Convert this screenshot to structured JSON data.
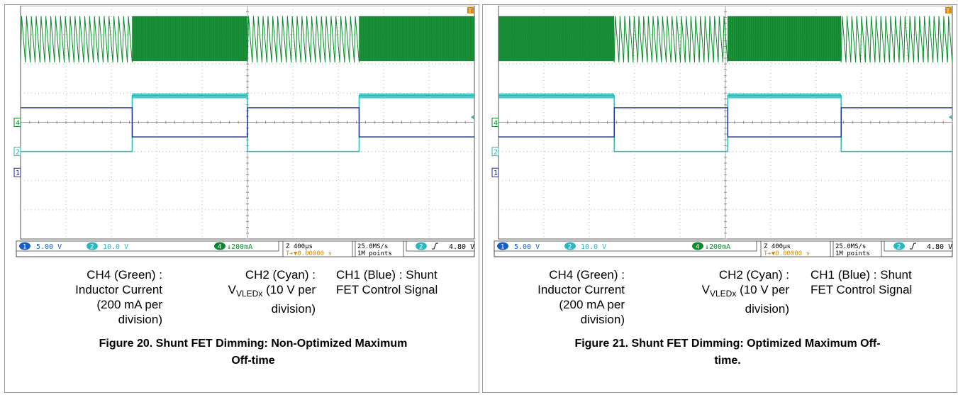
{
  "colors": {
    "ch4_green": "#0a8a2a",
    "ch2_cyan": "#21b8b8",
    "ch1_blue": "#1d2aa0",
    "readout_blue": "#1560c8",
    "readout_cyan": "#2ab6c4",
    "readout_orange": "#e08a00",
    "grid": "#b0b0b0"
  },
  "labels": {
    "ch4": [
      "CH4 (Green) :",
      "Inductor Current",
      "(200 mA per",
      "division)"
    ],
    "ch2_line1": "CH2 (Cyan) :",
    "ch2_v": "V",
    "ch2_sub": "VLEDx",
    "ch2_rest": " (10 V per",
    "ch2_line3": "division)",
    "ch1": [
      "CH1 (Blue) : Shunt",
      "FET Control Signal"
    ]
  },
  "chart_data": [
    {
      "type": "line",
      "title": "Figure 20. Shunt FET Dimming: Non-Optimized Maximum Off-time",
      "caption_lines": [
        "Figure 20. Shunt FET Dimming: Non-Optimized Maximum",
        "Off-time"
      ],
      "grid": true,
      "divisions": {
        "x": 10,
        "y": 8
      },
      "channel_markers": [
        "4",
        "2",
        "1"
      ],
      "trigger_marker": "T",
      "readout": {
        "ch1_scale": "5.00 V",
        "ch2_scale": "10.0 V",
        "ch4_scale": "↓200mA",
        "timebase": "Z 400µs",
        "trigger_offset": "T+▼0.00000 s",
        "sample_rate": "25.0MS/s",
        "record_length": "1M points",
        "trigger_channel": "2",
        "trigger_level": "4.80 V"
      },
      "series": [
        {
          "name": "CH4 (Green) : Inductor Current",
          "unit": "mA/div",
          "scale": 200,
          "segments": [
            {
              "from_div": 0.0,
              "to_div": 2.46,
              "mode": "sawtooth"
            },
            {
              "from_div": 2.46,
              "to_div": 5.0,
              "mode": "high-freq"
            },
            {
              "from_div": 5.0,
              "to_div": 7.46,
              "mode": "sawtooth"
            },
            {
              "from_div": 7.46,
              "to_div": 10.0,
              "mode": "high-freq"
            }
          ]
        },
        {
          "name": "CH2 (Cyan) : VVLEDx",
          "unit": "V/div",
          "scale": 10,
          "low_div": 5.0,
          "high_div": 3.08,
          "high_intervals": [
            [
              2.46,
              5.0
            ],
            [
              7.46,
              10.0
            ]
          ]
        },
        {
          "name": "CH1 (Blue) : Shunt FET Control Signal",
          "unit": "V/div",
          "scale": 5,
          "high_div": 3.5,
          "low_div": 4.5,
          "high_intervals": [
            [
              0.0,
              2.46
            ],
            [
              5.0,
              7.46
            ]
          ]
        }
      ]
    },
    {
      "type": "line",
      "title": "Figure 21. Shunt FET Dimming: Optimized Maximum Off-time.",
      "caption_lines": [
        "Figure 21. Shunt FET Dimming: Optimized Maximum Off-",
        "time."
      ],
      "grid": true,
      "divisions": {
        "x": 10,
        "y": 8
      },
      "channel_markers": [
        "4",
        "2",
        "1"
      ],
      "trigger_marker": "T",
      "readout": {
        "ch1_scale": "5.00 V",
        "ch2_scale": "10.0 V",
        "ch4_scale": "↓200mA",
        "timebase": "Z 400µs",
        "trigger_offset": "T+▼0.00000 s",
        "sample_rate": "25.0MS/s",
        "record_length": "1M points",
        "trigger_channel": "2",
        "trigger_level": "4.80 V"
      },
      "series": [
        {
          "name": "CH4 (Green) : Inductor Current",
          "unit": "mA/div",
          "scale": 200,
          "segments": [
            {
              "from_div": 0.0,
              "to_div": 2.55,
              "mode": "high-freq"
            },
            {
              "from_div": 2.55,
              "to_div": 5.05,
              "mode": "sawtooth"
            },
            {
              "from_div": 5.05,
              "to_div": 7.55,
              "mode": "high-freq"
            },
            {
              "from_div": 7.55,
              "to_div": 10.0,
              "mode": "sawtooth"
            }
          ]
        },
        {
          "name": "CH2 (Cyan) : VVLEDx",
          "unit": "V/div",
          "scale": 10,
          "low_div": 5.0,
          "high_div": 3.08,
          "high_intervals": [
            [
              0.0,
              2.55
            ],
            [
              5.05,
              7.55
            ]
          ]
        },
        {
          "name": "CH1 (Blue) : Shunt FET Control Signal",
          "unit": "V/div",
          "scale": 5,
          "high_div": 3.5,
          "low_div": 4.5,
          "high_intervals": [
            [
              2.55,
              5.05
            ],
            [
              7.55,
              10.0
            ]
          ]
        }
      ]
    }
  ]
}
